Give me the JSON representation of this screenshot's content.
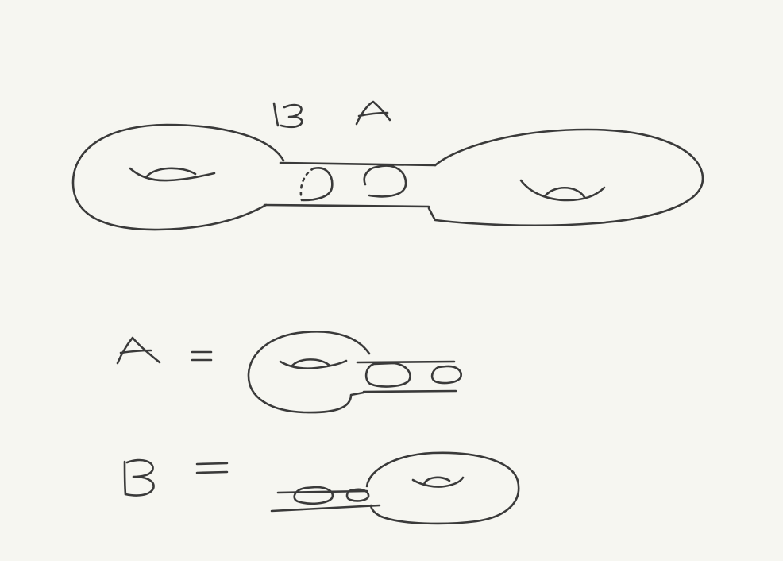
{
  "ink_color": "#3a3a3a",
  "background_color": "#f6f6f1",
  "labels": {
    "top_b": "B",
    "top_a": "A",
    "def_a": "A",
    "def_b": "B",
    "equals": "="
  }
}
